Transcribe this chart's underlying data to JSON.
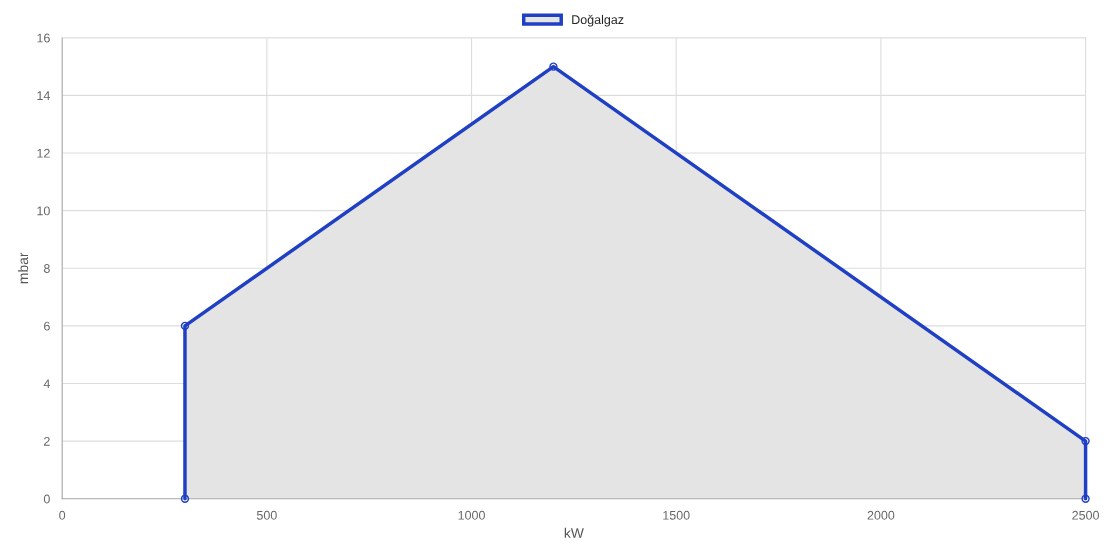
{
  "chart_data": {
    "type": "area",
    "xlabel": "kW",
    "ylabel": "mbar",
    "series": [
      {
        "name": "Doğalgaz",
        "color": "#1f3fc4",
        "x": [
          300,
          300,
          1200,
          2500,
          2500
        ],
        "values": [
          0,
          6,
          15,
          2,
          0
        ]
      }
    ],
    "xlim": [
      0,
      2500
    ],
    "xticks": [
      0,
      500,
      1000,
      1500,
      2000,
      2500
    ],
    "ylim": [
      0,
      16
    ],
    "yticks": [
      0,
      2,
      4,
      6,
      8,
      10,
      12,
      14,
      16
    ],
    "grid": true,
    "legend": "top",
    "marker": "circle",
    "line_style": "solid"
  }
}
